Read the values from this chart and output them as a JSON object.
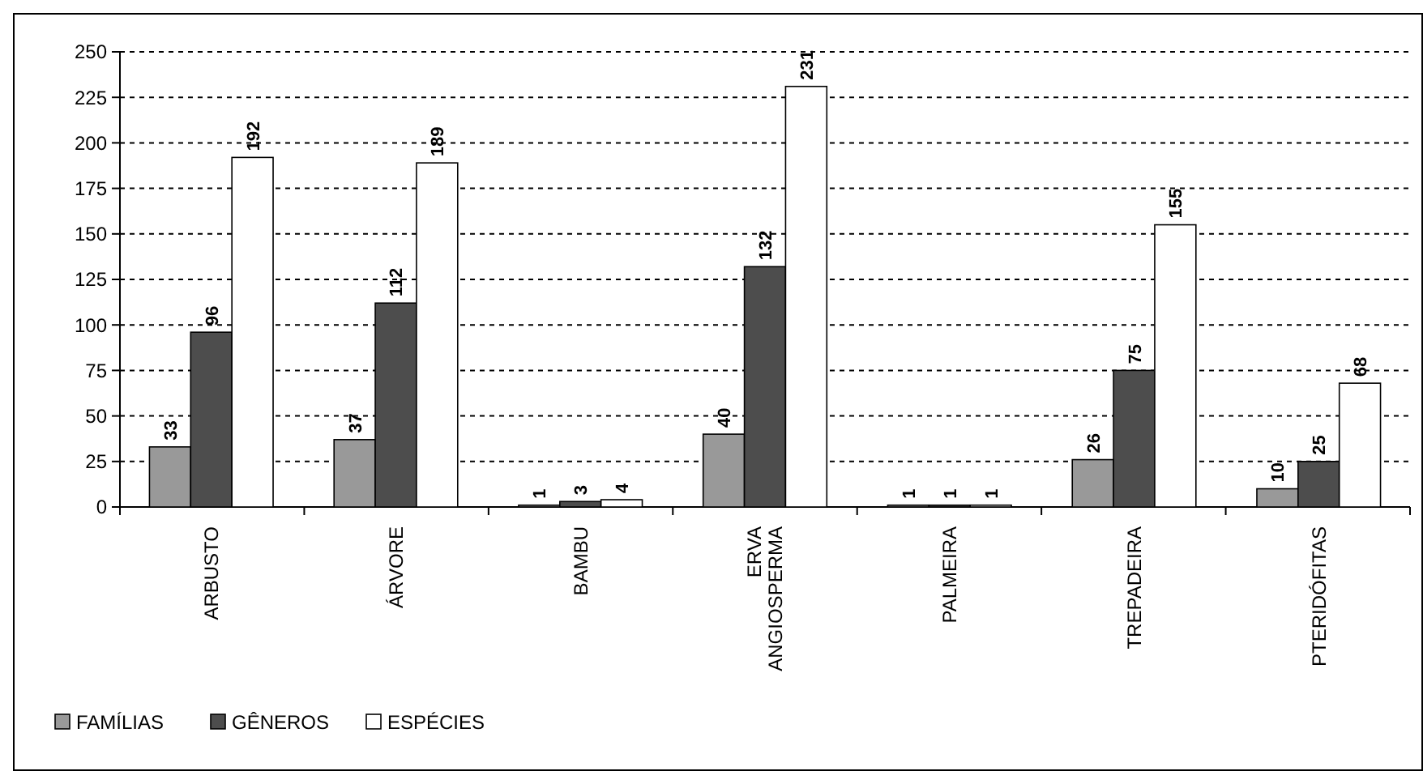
{
  "chart_data": {
    "type": "bar",
    "categories": [
      "ARBUSTO",
      "ÁRVORE",
      "BAMBU",
      "ERVA ANGIOSPERMA",
      "PALMEIRA",
      "TREPADEIRA",
      "PTERIDÓFITAS"
    ],
    "series": [
      {
        "name": "FAMÍLIAS",
        "color": "#999999",
        "values": [
          33,
          37,
          1,
          40,
          1,
          26,
          10
        ]
      },
      {
        "name": "GÊNEROS",
        "color": "#4d4d4d",
        "values": [
          96,
          112,
          3,
          132,
          1,
          75,
          25
        ]
      },
      {
        "name": "ESPÉCIES",
        "color": "#ffffff",
        "values": [
          192,
          189,
          4,
          231,
          1,
          155,
          68
        ]
      }
    ],
    "ylim": [
      0,
      250
    ],
    "yticks": [
      0,
      25,
      50,
      75,
      100,
      125,
      150,
      175,
      200,
      225,
      250
    ],
    "grid": "y",
    "legend": "bottom left",
    "data_labels": true
  }
}
